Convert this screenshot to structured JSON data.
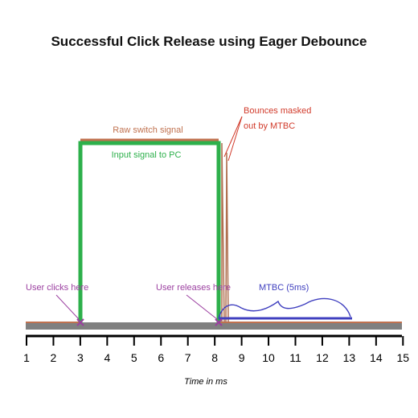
{
  "title": "Successful Click Release using Eager Debounce",
  "x_axis": {
    "label": "Time in ms",
    "ticks": [
      1,
      2,
      3,
      4,
      5,
      6,
      7,
      8,
      9,
      10,
      11,
      12,
      13,
      14,
      15
    ]
  },
  "labels": {
    "raw_switch_signal": "Raw switch signal",
    "input_signal_to_pc": "Input signal to PC",
    "bounces_masked_line1": "Bounces masked",
    "bounces_masked_line2": "out by MTBC",
    "user_clicks_here": "User clicks here",
    "user_releases_here": "User releases here",
    "mtbc": "MTBC (5ms)"
  },
  "colors": {
    "raw_signal": "#c0714f",
    "input_signal": "#2db04b",
    "baseline": "#808080",
    "mtbc": "#3f3fbf",
    "annotation": "#9b3fa0",
    "bounces_text": "#d13a2a",
    "axis": "#000000"
  },
  "events": {
    "click_ms": 3,
    "release_ms": 8,
    "mtbc_start_ms": 8,
    "mtbc_end_ms": 13,
    "mtbc_duration_ms": 5,
    "bounce_times_ms": [
      8.1,
      8.25
    ]
  }
}
